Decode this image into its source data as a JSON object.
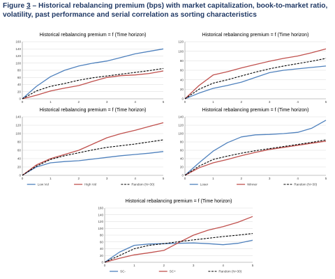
{
  "figure": {
    "prefix": "Figure ",
    "number": "3",
    "caption": " – Historical rebalancing premium (bps) with market capitalization, book-to-market ratio, volatility, past performance and serial correlation as sorting characteristics"
  },
  "colors": {
    "blue": "#4f81bd",
    "red": "#c0504d",
    "black": "#000000"
  },
  "chart_data": [
    {
      "type": "line",
      "title": "Historical rebalancing premium  = f (Time horizon)",
      "x_ticks": [
        "0",
        "1",
        "2",
        "3",
        "4",
        "5"
      ],
      "xlim": [
        0,
        5
      ],
      "ylim": [
        0,
        160
      ],
      "y_ticks": [
        0,
        20,
        40,
        60,
        80,
        100,
        120,
        140,
        160
      ],
      "grid": true,
      "legend": "bottom",
      "series": [
        {
          "name": "Small",
          "color": "#4f81bd",
          "dash": false,
          "x": [
            0,
            0.5,
            1,
            1.5,
            2,
            2.5,
            3,
            3.5,
            4,
            4.5,
            5
          ],
          "y": [
            0,
            35,
            62,
            80,
            92,
            100,
            106,
            116,
            126,
            133,
            140
          ]
        },
        {
          "name": "Big",
          "color": "#c0504d",
          "dash": false,
          "x": [
            0,
            0.5,
            1,
            1.5,
            2,
            2.5,
            3,
            3.5,
            4,
            4.5,
            5
          ],
          "y": [
            0,
            10,
            22,
            30,
            37,
            49,
            60,
            65,
            67,
            71,
            78
          ]
        },
        {
          "name": "Random (N=30)",
          "color": "#000000",
          "dash": true,
          "x": [
            0,
            0.5,
            1,
            1.5,
            2,
            2.5,
            3,
            3.5,
            4,
            4.5,
            5
          ],
          "y": [
            0,
            22,
            35,
            43,
            52,
            59,
            64,
            69,
            74,
            79,
            85
          ]
        }
      ]
    },
    {
      "type": "line",
      "title": "Historical rebalancing premium  = f (Time horizon)",
      "x_ticks": [
        "0",
        "1",
        "2",
        "3",
        "4",
        "5"
      ],
      "xlim": [
        0,
        5
      ],
      "ylim": [
        0,
        120
      ],
      "y_ticks": [
        0,
        20,
        40,
        60,
        80,
        100,
        120
      ],
      "grid": true,
      "legend": "bottom",
      "series": [
        {
          "name": "Value",
          "color": "#4f81bd",
          "dash": false,
          "x": [
            0,
            0.5,
            1,
            1.5,
            2,
            2.5,
            3,
            3.5,
            4,
            4.5,
            5
          ],
          "y": [
            0,
            12,
            22,
            28,
            35,
            45,
            55,
            60,
            63,
            66,
            69
          ]
        },
        {
          "name": "Growth",
          "color": "#c0504d",
          "dash": false,
          "x": [
            0,
            0.5,
            1,
            1.5,
            2,
            2.5,
            3,
            3.5,
            4,
            4.5,
            5
          ],
          "y": [
            0,
            28,
            50,
            57,
            65,
            72,
            79,
            85,
            90,
            97,
            105
          ]
        },
        {
          "name": "Random (N=30)",
          "color": "#000000",
          "dash": true,
          "x": [
            0,
            0.5,
            1,
            1.5,
            2,
            2.5,
            3,
            3.5,
            4,
            4.5,
            5
          ],
          "y": [
            0,
            20,
            33,
            40,
            48,
            56,
            63,
            69,
            74,
            79,
            85
          ]
        }
      ]
    },
    {
      "type": "line",
      "title": "Historical rebalancing premium  = f (Time horizon)",
      "x_ticks": [
        "0",
        "1",
        "2",
        "3",
        "4",
        "5"
      ],
      "xlim": [
        0,
        5
      ],
      "ylim": [
        0,
        140
      ],
      "y_ticks": [
        0,
        20,
        40,
        60,
        80,
        100,
        120,
        140
      ],
      "grid": true,
      "legend": "bottom",
      "series": [
        {
          "name": "Low Vol",
          "color": "#4f81bd",
          "dash": false,
          "x": [
            0,
            0.5,
            1,
            1.5,
            2,
            2.5,
            3,
            3.5,
            4,
            4.5,
            5
          ],
          "y": [
            0,
            20,
            30,
            33,
            35,
            39,
            43,
            47,
            50,
            53,
            57
          ]
        },
        {
          "name": "High Vol",
          "color": "#c0504d",
          "dash": false,
          "x": [
            0,
            0.5,
            1,
            1.5,
            2,
            2.5,
            3,
            3.5,
            4,
            4.5,
            5
          ],
          "y": [
            0,
            25,
            40,
            50,
            60,
            75,
            90,
            100,
            108,
            117,
            126
          ]
        },
        {
          "name": "Random (N=30)",
          "color": "#000000",
          "dash": true,
          "x": [
            0,
            0.5,
            1,
            1.5,
            2,
            2.5,
            3,
            3.5,
            4,
            4.5,
            5
          ],
          "y": [
            0,
            22,
            38,
            47,
            54,
            61,
            67,
            71,
            75,
            80,
            85
          ]
        }
      ]
    },
    {
      "type": "line",
      "title": "Historical rebalancing premium  = f (Time horizon)",
      "x_ticks": [
        "0",
        "1",
        "2",
        "3",
        "4",
        "5"
      ],
      "xlim": [
        0,
        5
      ],
      "ylim": [
        0,
        140
      ],
      "y_ticks": [
        0,
        20,
        40,
        60,
        80,
        100,
        120,
        140
      ],
      "grid": true,
      "legend": "bottom",
      "series": [
        {
          "name": "Loser",
          "color": "#4f81bd",
          "dash": false,
          "x": [
            0,
            0.5,
            1,
            1.5,
            2,
            2.5,
            3,
            3.5,
            4,
            4.5,
            5
          ],
          "y": [
            0,
            30,
            58,
            78,
            92,
            97,
            98,
            100,
            103,
            113,
            132
          ]
        },
        {
          "name": "Winner",
          "color": "#c0504d",
          "dash": false,
          "x": [
            0,
            0.5,
            1,
            1.5,
            2,
            2.5,
            3,
            3.5,
            4,
            4.5,
            5
          ],
          "y": [
            0,
            18,
            30,
            38,
            47,
            55,
            62,
            67,
            72,
            77,
            82
          ]
        },
        {
          "name": "Random (N=30)",
          "color": "#000000",
          "dash": true,
          "x": [
            0,
            0.5,
            1,
            1.5,
            2,
            2.5,
            3,
            3.5,
            4,
            4.5,
            5
          ],
          "y": [
            0,
            22,
            38,
            46,
            53,
            59,
            64,
            69,
            74,
            79,
            85
          ]
        }
      ]
    },
    {
      "type": "line",
      "title": "Historical rebalancing premium  = f (Time horizon)",
      "x_ticks": [
        "0",
        "1",
        "2",
        "3",
        "4",
        "5"
      ],
      "xlim": [
        0,
        5
      ],
      "ylim": [
        0,
        160
      ],
      "y_ticks": [
        0,
        20,
        40,
        60,
        80,
        100,
        120,
        140,
        160
      ],
      "grid": true,
      "legend": "bottom",
      "series": [
        {
          "name": "SC-",
          "color": "#4f81bd",
          "dash": false,
          "x": [
            0,
            0.5,
            1,
            1.5,
            2,
            2.5,
            3,
            3.5,
            4,
            4.5,
            5
          ],
          "y": [
            0,
            30,
            50,
            54,
            55,
            56,
            57,
            55,
            52,
            56,
            65
          ]
        },
        {
          "name": "SC+",
          "color": "#c0504d",
          "dash": false,
          "x": [
            0,
            0.5,
            1,
            1.5,
            2,
            2.5,
            3,
            3.5,
            4,
            4.5,
            5
          ],
          "y": [
            0,
            12,
            22,
            28,
            35,
            58,
            80,
            95,
            105,
            118,
            135
          ]
        },
        {
          "name": "Random (N=30)",
          "color": "#000000",
          "dash": true,
          "x": [
            0,
            0.5,
            1,
            1.5,
            2,
            2.5,
            3,
            3.5,
            4,
            4.5,
            5
          ],
          "y": [
            0,
            20,
            40,
            50,
            55,
            61,
            66,
            71,
            76,
            80,
            85
          ]
        }
      ]
    }
  ]
}
